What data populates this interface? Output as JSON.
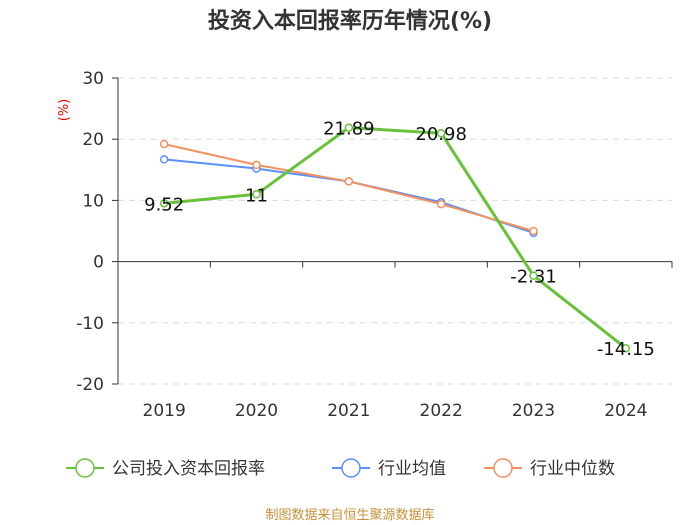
{
  "chart_data": {
    "type": "line",
    "title": "投资入本回报率历年情况(%)",
    "unit_label": "(%)",
    "categories": [
      "2019",
      "2020",
      "2021",
      "2022",
      "2023",
      "2024"
    ],
    "ylim": [
      -20,
      30
    ],
    "yticks": [
      30,
      20,
      10,
      0,
      -10,
      -20
    ],
    "grid": true,
    "series": [
      {
        "name": "公司投入资本回报率",
        "color": "#67c23a",
        "values": [
          9.52,
          11,
          21.89,
          20.98,
          -2.31,
          -14.15
        ],
        "labels": [
          "9.52",
          "11",
          "21.89",
          "20.98",
          "-2.31",
          "-14.15"
        ]
      },
      {
        "name": "行业均值",
        "color": "#5b8ff9",
        "values": [
          16.7,
          15.2,
          13.1,
          9.7,
          4.7,
          null
        ]
      },
      {
        "name": "行业中位数",
        "color": "#f4915f",
        "values": [
          19.2,
          15.8,
          13.1,
          9.4,
          5.0,
          null
        ]
      }
    ],
    "legend_position": "bottom",
    "source": "制图数据来自恒生聚源数据库"
  }
}
